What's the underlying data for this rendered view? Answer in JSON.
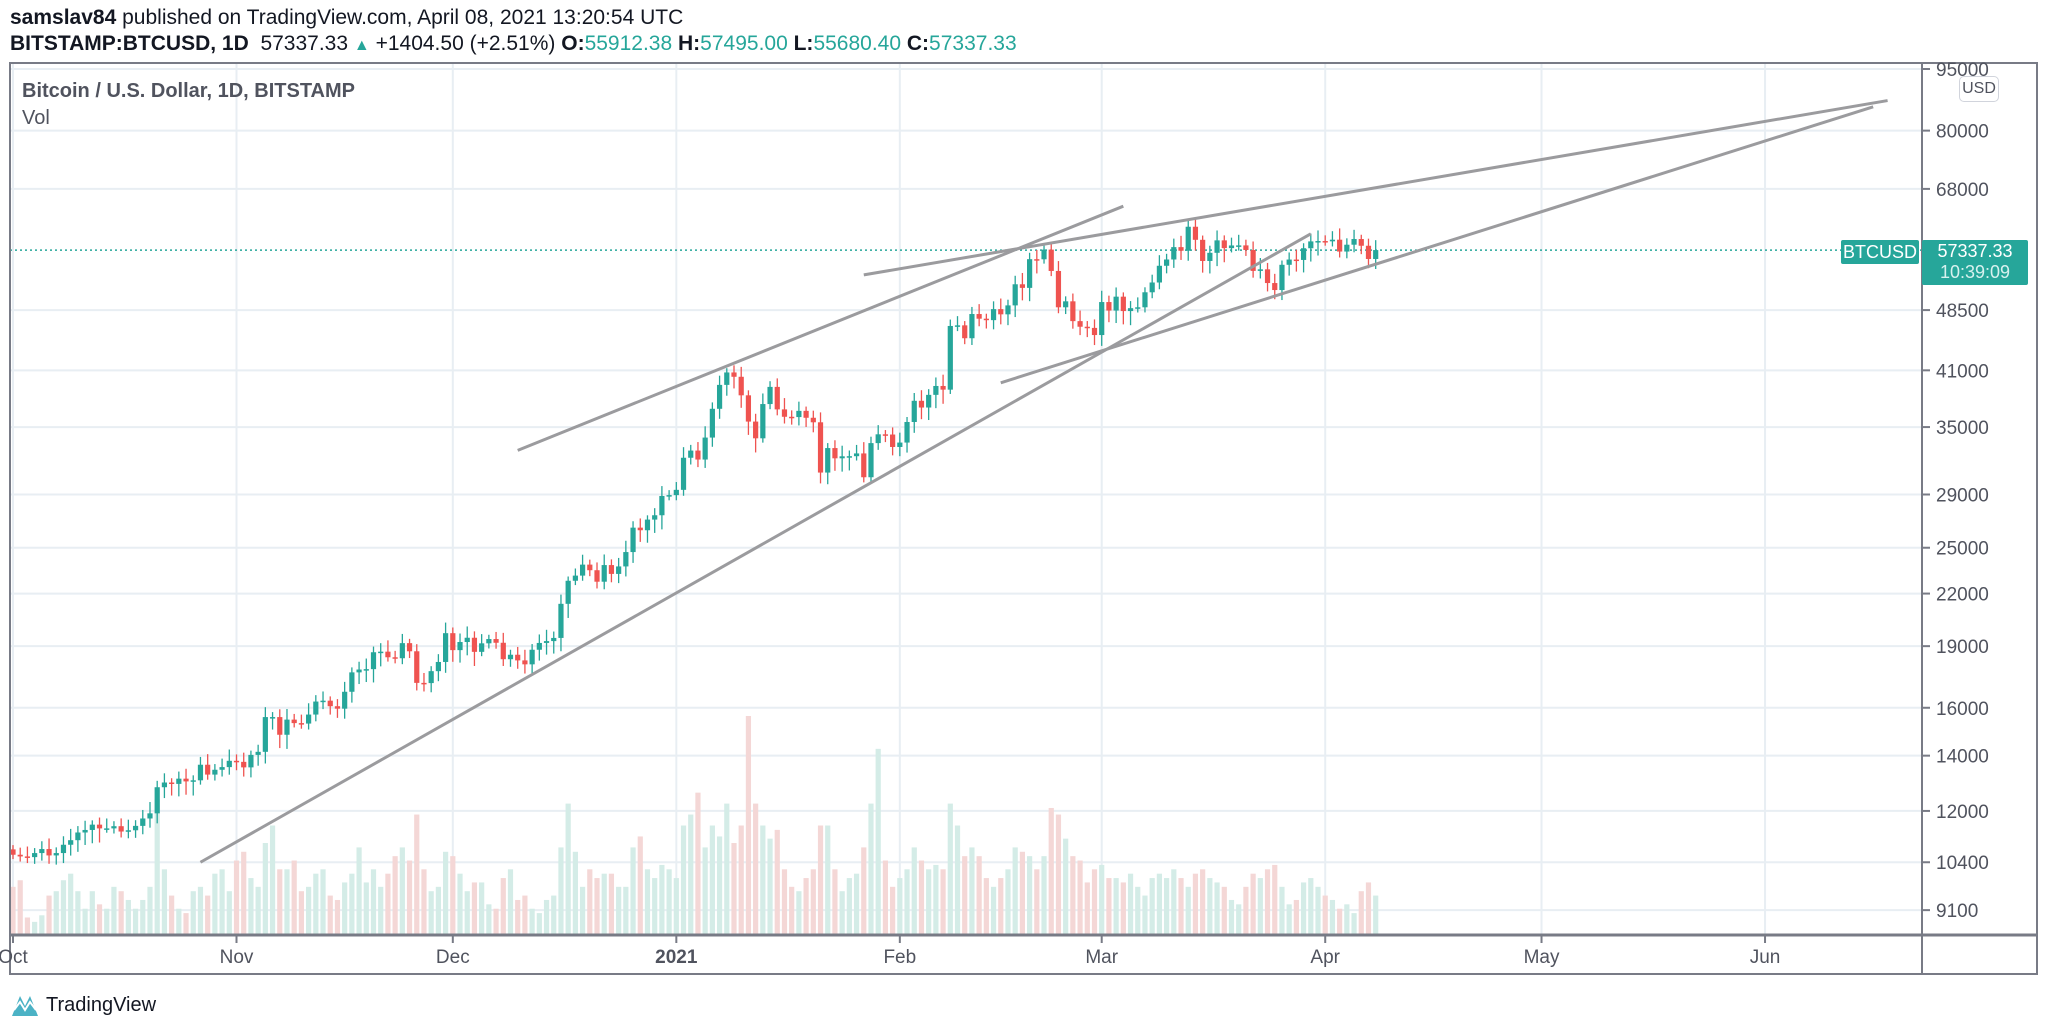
{
  "header": {
    "author": "samslav84",
    "published": "published on TradingView.com, April 08, 2021 13:20:54 UTC",
    "symbol": "BITSTAMP:BTCUSD, 1D",
    "last": "57337.33",
    "change": "+1404.50 (+2.51%)",
    "o_label": "O:",
    "o": "55912.38",
    "h_label": "H:",
    "h": "57495.00",
    "l_label": "L:",
    "l": "55680.40",
    "c_label": "C:",
    "c": "57337.33"
  },
  "legend": {
    "title": "Bitcoin / U.S. Dollar, 1D, BITSTAMP",
    "volume": "Vol"
  },
  "axis": {
    "currency": "USD",
    "symbol_tag": "BTCUSD",
    "price_tag": "57337.33",
    "countdown": "10:39:09"
  },
  "watermark": "TradingView",
  "colors": {
    "up": "#26a69a",
    "down": "#ef5350",
    "trendline": "#9b9b9e",
    "grid": "#e8eef3"
  },
  "chart_data": {
    "type": "candlestick",
    "title": "Bitcoin / U.S. Dollar, 1D, BITSTAMP",
    "yscale": "log",
    "ylim": [
      8500,
      95000
    ],
    "y_ticks": [
      95000,
      80000,
      68000,
      48500,
      41000,
      35000,
      29000,
      25000,
      22000,
      19000,
      16000,
      14000,
      12000,
      10400,
      9100
    ],
    "x_ticks": [
      {
        "label": "Oct",
        "day": 0
      },
      {
        "label": "Nov",
        "day": 31
      },
      {
        "label": "Dec",
        "day": 61
      },
      {
        "label": "2021",
        "day": 92
      },
      {
        "label": "Feb",
        "day": 123
      },
      {
        "label": "Mar",
        "day": 151
      },
      {
        "label": "Apr",
        "day": 182
      },
      {
        "label": "May",
        "day": 212
      },
      {
        "label": "Jun",
        "day": 243
      }
    ],
    "start_date": "2020-10-01",
    "first_open": 10780,
    "closes": [
      10620,
      10570,
      10550,
      10670,
      10790,
      10600,
      10670,
      10920,
      11060,
      11300,
      11380,
      11550,
      11430,
      11430,
      11500,
      11330,
      11370,
      11510,
      11750,
      11920,
      12820,
      12990,
      12940,
      13130,
      13030,
      13070,
      13650,
      13280,
      13460,
      13560,
      13800,
      13760,
      13550,
      14030,
      14150,
      15590,
      15590,
      14840,
      15480,
      15330,
      15310,
      15700,
      16280,
      16320,
      16070,
      15960,
      16730,
      17660,
      17800,
      17820,
      18680,
      18710,
      18420,
      18370,
      19160,
      18730,
      17150,
      17140,
      17720,
      18180,
      19700,
      18790,
      19220,
      19450,
      18700,
      19150,
      19380,
      19180,
      18320,
      18550,
      18260,
      18060,
      18810,
      19170,
      19270,
      19440,
      21380,
      22800,
      23130,
      23850,
      23480,
      22740,
      23820,
      23240,
      23730,
      24700,
      26440,
      26250,
      27040,
      27370,
      28880,
      28950,
      29380,
      32130,
      32780,
      31970,
      33990,
      36830,
      39370,
      40760,
      40270,
      38240,
      35540,
      33920,
      37320,
      39150,
      36770,
      36020,
      35990,
      36620,
      35920,
      35470,
      30830,
      33010,
      32080,
      32260,
      32270,
      32520,
      30430,
      33470,
      34300,
      34280,
      33110,
      33520,
      35500,
      37660,
      36960,
      38290,
      39250,
      38850,
      46400,
      46480,
      44840,
      47970,
      47350,
      47160,
      48630,
      47930,
      49140,
      52120,
      51600,
      55900,
      55880,
      57410,
      54090,
      48880,
      49700,
      47030,
      46300,
      46150,
      45240,
      49600,
      48440,
      50350,
      48370,
      48760,
      48880,
      50970,
      52380,
      54880,
      55850,
      57810,
      57230,
      61190,
      59000,
      55620,
      56900,
      58910,
      57650,
      58080,
      58090,
      57350,
      54100,
      54340,
      52300,
      51290,
      55030,
      55840,
      55780,
      57630,
      58740,
      58800,
      58750,
      59020,
      57100,
      58200,
      59130,
      58030,
      55930,
      57337.33
    ],
    "volume_relative": [
      22,
      25,
      8,
      6,
      9,
      18,
      20,
      25,
      28,
      20,
      12,
      20,
      14,
      12,
      22,
      20,
      16,
      12,
      16,
      22,
      62,
      30,
      18,
      12,
      10,
      20,
      22,
      18,
      28,
      30,
      20,
      34,
      38,
      26,
      22,
      42,
      50,
      30,
      30,
      34,
      20,
      22,
      28,
      30,
      18,
      16,
      24,
      28,
      40,
      24,
      30,
      22,
      28,
      36,
      40,
      34,
      55,
      30,
      20,
      22,
      38,
      36,
      28,
      20,
      24,
      24,
      14,
      12,
      26,
      30,
      16,
      18,
      12,
      10,
      16,
      18,
      40,
      60,
      38,
      22,
      30,
      26,
      28,
      28,
      22,
      22,
      40,
      45,
      30,
      26,
      32,
      30,
      26,
      50,
      55,
      65,
      40,
      50,
      45,
      60,
      42,
      50,
      100,
      60,
      50,
      44,
      48,
      30,
      22,
      20,
      26,
      30,
      50,
      50,
      30,
      20,
      26,
      28,
      40,
      60,
      85,
      34,
      22,
      26,
      30,
      40,
      34,
      30,
      32,
      30,
      60,
      50,
      36,
      40,
      36,
      26,
      22,
      26,
      30,
      40,
      38,
      36,
      30,
      36,
      58,
      55,
      44,
      36,
      34,
      24,
      30,
      32,
      26,
      26,
      24,
      28,
      22,
      18,
      26,
      28,
      26,
      30,
      26,
      22,
      28,
      30,
      26,
      24,
      22,
      16,
      14,
      22,
      28,
      26,
      30,
      32,
      22,
      14,
      16,
      24,
      26,
      22,
      18,
      16,
      12,
      14,
      10,
      20,
      24,
      18
    ],
    "trendlines": [
      {
        "name": "lower-support",
        "from": {
          "day": 26,
          "price": 10400
        },
        "to": {
          "day": 180,
          "price": 60000
        }
      },
      {
        "name": "upper-channel-jan",
        "from": {
          "day": 70,
          "price": 32800
        },
        "to": {
          "day": 154,
          "price": 64800
        }
      },
      {
        "name": "upper-wedge",
        "from": {
          "day": 118,
          "price": 53500
        },
        "to": {
          "day": 260,
          "price": 87000
        }
      },
      {
        "name": "lower-wedge",
        "from": {
          "day": 137,
          "price": 39600
        },
        "to": {
          "day": 258,
          "price": 85500
        }
      }
    ],
    "last_price": 57337.33
  }
}
